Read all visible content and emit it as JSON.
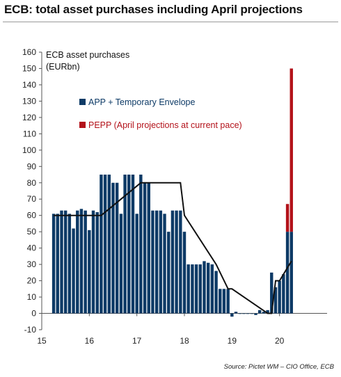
{
  "title": "ECB: total asset purchases including April projections",
  "source": "Source: Pictet WM – CIO Office, ECB",
  "chart_data": {
    "type": "bar",
    "title": "ECB: total asset purchases including April projections",
    "annotation": [
      "ECB asset purchases",
      "(EURbn)"
    ],
    "ylabel": "",
    "xlabel": "",
    "ylim": [
      -10,
      160
    ],
    "yticks": [
      -10,
      0,
      10,
      20,
      30,
      40,
      50,
      60,
      70,
      80,
      90,
      100,
      110,
      120,
      130,
      140,
      150,
      160
    ],
    "xlim": [
      15,
      21
    ],
    "xticks": [
      15,
      16,
      17,
      18,
      19,
      20
    ],
    "grid": false,
    "legend_position": "top-left",
    "colors": {
      "app": "#0d3a66",
      "pepp": "#b3121a",
      "line": "#111111"
    },
    "series": [
      {
        "name": "APP + Temporary Envelope",
        "x": [
          15.25,
          15.333,
          15.417,
          15.5,
          15.583,
          15.667,
          15.75,
          15.833,
          15.917,
          16.0,
          16.083,
          16.167,
          16.25,
          16.333,
          16.417,
          16.5,
          16.583,
          16.667,
          16.75,
          16.833,
          16.917,
          17.0,
          17.083,
          17.167,
          17.25,
          17.333,
          17.417,
          17.5,
          17.583,
          17.667,
          17.75,
          17.833,
          17.917,
          18.0,
          18.083,
          18.167,
          18.25,
          18.333,
          18.417,
          18.5,
          18.583,
          18.667,
          18.75,
          18.833,
          18.917,
          19.0,
          19.083,
          19.167,
          19.25,
          19.333,
          19.417,
          19.5,
          19.583,
          19.667,
          19.75,
          19.833,
          19.917,
          20.0,
          20.083,
          20.167
        ],
        "values": [
          61,
          61,
          63,
          63,
          61,
          52,
          63,
          64,
          63,
          51,
          63,
          62,
          85,
          85,
          85,
          80,
          80,
          61,
          85,
          85,
          85,
          61,
          85,
          80,
          80,
          63,
          63,
          63,
          61,
          50,
          63,
          63,
          63,
          50,
          30,
          30,
          30,
          30,
          32,
          31,
          30,
          26,
          15,
          15,
          15,
          -2,
          1,
          0,
          0,
          0,
          0,
          -1,
          2,
          1,
          2,
          25,
          16,
          20,
          24,
          50
        ]
      },
      {
        "name": "PEPP (April projections at current pace)",
        "x": [
          20.167,
          20.25
        ],
        "values": [
          17,
          100
        ]
      }
    ],
    "extra_bars": [
      {
        "x": 20.25,
        "app": 50
      }
    ],
    "step_line": {
      "x": [
        15.25,
        16.25,
        16.25,
        17.083,
        17.083,
        17.917,
        17.917,
        18.0,
        18.0,
        18.667,
        18.667,
        18.917,
        18.917,
        19.0,
        19.0,
        19.75,
        19.75,
        19.833,
        19.833,
        19.917,
        19.917,
        20.0,
        20.0,
        20.25
      ],
      "y": [
        60,
        60,
        60,
        80,
        80,
        80,
        80,
        60,
        60,
        30,
        30,
        15,
        15,
        15,
        15,
        0,
        0,
        0,
        0,
        20,
        20,
        20,
        20,
        32
      ]
    }
  }
}
